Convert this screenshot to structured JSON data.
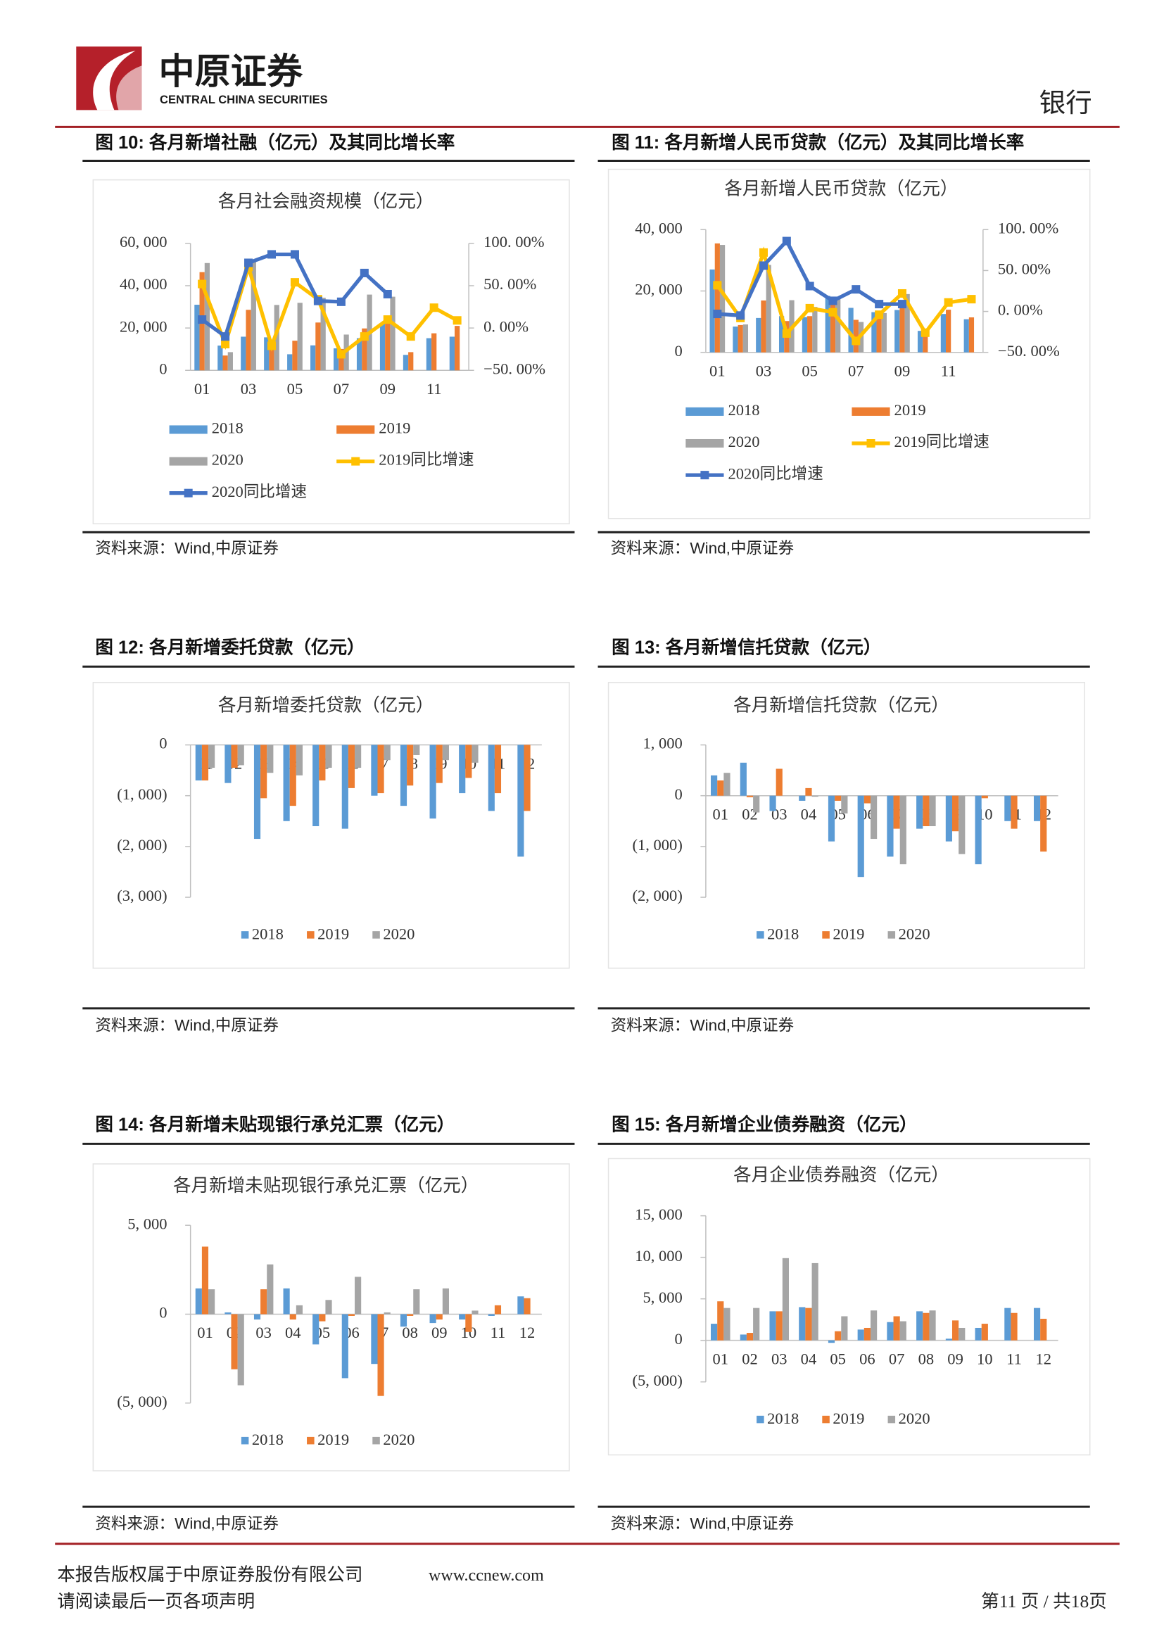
{
  "header": {
    "logo_cn": "中原证券",
    "logo_en": "CENTRAL CHINA SECURITIES",
    "section": "银行"
  },
  "figures": [
    {
      "caption": "图 10: 各月新增社融（亿元）及其同比增长率",
      "source": "资料来源：Wind,中原证券"
    },
    {
      "caption": "图 11: 各月新增人民币贷款（亿元）及其同比增长率",
      "source": "资料来源：Wind,中原证券"
    },
    {
      "caption": "图 12: 各月新增委托贷款（亿元）",
      "source": "资料来源：Wind,中原证券"
    },
    {
      "caption": "图 13: 各月新增信托贷款（亿元）",
      "source": "资料来源：Wind,中原证券"
    },
    {
      "caption": "图 14: 各月新增未贴现银行承兑汇票（亿元）",
      "source": "资料来源：Wind,中原证券"
    },
    {
      "caption": "图 15: 各月新增企业债券融资（亿元）",
      "source": "资料来源：Wind,中原证券"
    }
  ],
  "chart_data": [
    {
      "type": "combo",
      "title": "各月社会融资规模（亿元）",
      "categories": [
        "01",
        null,
        "03",
        null,
        "05",
        null,
        "07",
        null,
        "09",
        null,
        "11",
        null
      ],
      "ylim": [
        0,
        60000
      ],
      "yticks": [
        0,
        {
          "value": 20000,
          "label": "20, 000"
        },
        {
          "value": 40000,
          "label": "40, 000"
        },
        {
          "value": 60000,
          "label": "60, 000"
        }
      ],
      "y2lim": [
        -50,
        100
      ],
      "y2ticks": [
        {
          "value": -50,
          "label": "−50. 00%"
        },
        {
          "value": 0,
          "label": "0. 00%"
        },
        {
          "value": 50,
          "label": "50. 00%"
        },
        {
          "value": 100,
          "label": "100. 00%"
        }
      ],
      "series": [
        {
          "name": "2018",
          "color": "#5b9bd5",
          "values": [
            31000,
            11700,
            15900,
            15600,
            7600,
            11800,
            10400,
            15200,
            22100,
            7300,
            15200,
            15900
          ]
        },
        {
          "name": "2019",
          "color": "#ed7d31",
          "values": [
            46400,
            7000,
            28600,
            13600,
            14000,
            22600,
            10100,
            19800,
            22700,
            8600,
            17500,
            21000
          ]
        },
        {
          "name": "2020",
          "color": "#a5a5a5",
          "values": [
            50700,
            8600,
            51800,
            30900,
            31900,
            34300,
            16900,
            35800,
            34800,
            null,
            null,
            null
          ]
        },
        {
          "name": "2019同比增速",
          "color": "#ffc000",
          "axis": "y2",
          "values": [
            52,
            -19,
            72,
            -21,
            54,
            34,
            -31,
            -10,
            10,
            -10,
            24,
            9
          ]
        },
        {
          "name": "2020同比增速",
          "color": "#4472c4",
          "axis": "y2",
          "values": [
            10,
            -10,
            77,
            87,
            87,
            32,
            31,
            65,
            40,
            null,
            null,
            null
          ]
        }
      ]
    },
    {
      "type": "combo",
      "title": "各月新增人民币贷款（亿元）",
      "categories": [
        "01",
        null,
        "03",
        null,
        "05",
        null,
        "07",
        null,
        "09",
        null,
        "11",
        null
      ],
      "ylim": [
        0,
        40000
      ],
      "yticks": [
        0,
        {
          "value": 20000,
          "label": "20, 000"
        },
        {
          "value": 40000,
          "label": "40, 000"
        }
      ],
      "y2lim": [
        -50,
        100
      ],
      "y2ticks": [
        {
          "value": -50,
          "label": "−50. 00%"
        },
        {
          "value": 0,
          "label": "0. 00%"
        },
        {
          "value": 50,
          "label": "50. 00%"
        },
        {
          "value": 100,
          "label": "100. 00%"
        }
      ],
      "series": [
        {
          "name": "2018",
          "color": "#5b9bd5",
          "values": [
            27000,
            8400,
            11200,
            11800,
            11500,
            18400,
            14500,
            13100,
            13800,
            7000,
            12500,
            10800
          ]
        },
        {
          "name": "2019",
          "color": "#ed7d31",
          "values": [
            35500,
            8900,
            16900,
            10200,
            11800,
            16600,
            10600,
            12100,
            16900,
            6600,
            13900,
            11400
          ]
        },
        {
          "name": "2020",
          "color": "#a5a5a5",
          "values": [
            35000,
            9100,
            28500,
            17000,
            14800,
            18100,
            9900,
            12800,
            19000,
            null,
            null,
            null
          ]
        },
        {
          "name": "2019同比增速",
          "color": "#ffc000",
          "axis": "y2",
          "values": [
            32,
            -8,
            72,
            -27,
            4,
            -1,
            -36,
            -4,
            22,
            -26,
            11,
            15
          ]
        },
        {
          "name": "2020同比增速",
          "color": "#4472c4",
          "axis": "y2",
          "values": [
            -3,
            -5,
            56,
            86,
            31,
            13,
            27,
            9,
            9,
            null,
            null,
            null
          ]
        }
      ]
    },
    {
      "type": "bar",
      "title": "各月新增委托贷款（亿元）",
      "negative_tick_color": "#c00000",
      "categories": [
        "01",
        "02",
        "03",
        "04",
        "05",
        "06",
        "07",
        "08",
        "09",
        "10",
        "11",
        "12"
      ],
      "ylim": [
        -3000,
        0
      ],
      "yticks": [
        0,
        {
          "value": -1000,
          "label": "(1, 000)"
        },
        {
          "value": -2000,
          "label": "(2, 000)"
        },
        {
          "value": -3000,
          "label": "(3, 000)"
        }
      ],
      "series": [
        {
          "name": "2018",
          "color": "#5b9bd5",
          "values": [
            -700,
            -750,
            -1850,
            -1500,
            -1600,
            -1650,
            -1000,
            -1200,
            -1450,
            -950,
            -1300,
            -2200
          ]
        },
        {
          "name": "2019",
          "color": "#ed7d31",
          "values": [
            -700,
            -450,
            -1050,
            -1200,
            -700,
            -850,
            -950,
            -800,
            -750,
            -650,
            -950,
            -1300
          ]
        },
        {
          "name": "2020",
          "color": "#a5a5a5",
          "values": [
            -450,
            -400,
            -550,
            -600,
            -450,
            -450,
            -300,
            -200,
            -300,
            -350,
            null,
            null
          ]
        }
      ]
    },
    {
      "type": "bar",
      "title": "各月新增信托贷款（亿元）",
      "negative_tick_color": "#c00000",
      "categories": [
        "01",
        "02",
        "03",
        "04",
        "05",
        "06",
        "07",
        "08",
        "09",
        "10",
        "11",
        "12"
      ],
      "ylim": [
        -2000,
        1000
      ],
      "yticks": [
        {
          "value": 1000,
          "label": "1, 000"
        },
        0,
        {
          "value": -1000,
          "label": "(1, 000)"
        },
        {
          "value": -2000,
          "label": "(2, 000)"
        }
      ],
      "series": [
        {
          "name": "2018",
          "color": "#5b9bd5",
          "values": [
            400,
            650,
            -300,
            -100,
            -900,
            -1600,
            -1200,
            -650,
            -900,
            -1350,
            -500,
            -500
          ]
        },
        {
          "name": "2019",
          "color": "#ed7d31",
          "values": [
            300,
            -30,
            530,
            150,
            -100,
            -150,
            -650,
            -600,
            -700,
            -50,
            -650,
            -1100
          ]
        },
        {
          "name": "2020",
          "color": "#a5a5a5",
          "values": [
            450,
            -330,
            0,
            -20,
            -350,
            -850,
            -1350,
            -600,
            -1150,
            null,
            null,
            null
          ]
        }
      ]
    },
    {
      "type": "bar",
      "title": "各月新增未贴现银行承兑汇票（亿元）",
      "negative_tick_color": "#c00000",
      "categories": [
        "01",
        "02",
        "03",
        "04",
        "05",
        "06",
        "07",
        "08",
        "09",
        "10",
        "11",
        "12"
      ],
      "ylim": [
        -5000,
        5000
      ],
      "yticks": [
        {
          "value": 5000,
          "label": "5, 000"
        },
        0,
        {
          "value": -5000,
          "label": "(5, 000)"
        }
      ],
      "series": [
        {
          "name": "2018",
          "color": "#5b9bd5",
          "values": [
            1450,
            100,
            -300,
            1450,
            -1700,
            -3600,
            -2800,
            -700,
            -500,
            -300,
            -100,
            1000
          ]
        },
        {
          "name": "2019",
          "color": "#ed7d31",
          "values": [
            3800,
            -3100,
            1400,
            -300,
            -400,
            -100,
            -4600,
            -100,
            -300,
            -1000,
            500,
            900
          ]
        },
        {
          "name": "2020",
          "color": "#a5a5a5",
          "values": [
            1400,
            -4000,
            2800,
            500,
            800,
            2100,
            100,
            1400,
            1450,
            200,
            null,
            null
          ]
        }
      ]
    },
    {
      "type": "bar",
      "title": "各月企业债券融资（亿元）",
      "negative_tick_color": "#c00000",
      "categories": [
        "01",
        "02",
        "03",
        "04",
        "05",
        "06",
        "07",
        "08",
        "09",
        "10",
        "11",
        "12"
      ],
      "ylim": [
        -5000,
        15000
      ],
      "yticks": [
        {
          "value": 15000,
          "label": "15, 000"
        },
        {
          "value": 10000,
          "label": "10, 000"
        },
        {
          "value": 5000,
          "label": "5, 000"
        },
        0,
        {
          "value": -5000,
          "label": "(5, 000)"
        }
      ],
      "series": [
        {
          "name": "2018",
          "color": "#5b9bd5",
          "values": [
            2000,
            700,
            3500,
            4000,
            -300,
            1300,
            2200,
            3500,
            200,
            1500,
            3900,
            3900
          ]
        },
        {
          "name": "2019",
          "color": "#ed7d31",
          "values": [
            4700,
            900,
            3500,
            3900,
            1100,
            1500,
            2900,
            3300,
            2400,
            2000,
            3300,
            2600
          ]
        },
        {
          "name": "2020",
          "color": "#a5a5a5",
          "values": [
            3900,
            3900,
            9900,
            9300,
            2900,
            3600,
            2300,
            3600,
            1500,
            null,
            null,
            null
          ]
        }
      ]
    }
  ],
  "footer": {
    "copyright": "本报告版权属于中原证券股份有限公司",
    "website": "www.ccnew.com",
    "notice": "请阅读最后一页各项声明",
    "page": "第11 页 / 共18页"
  }
}
